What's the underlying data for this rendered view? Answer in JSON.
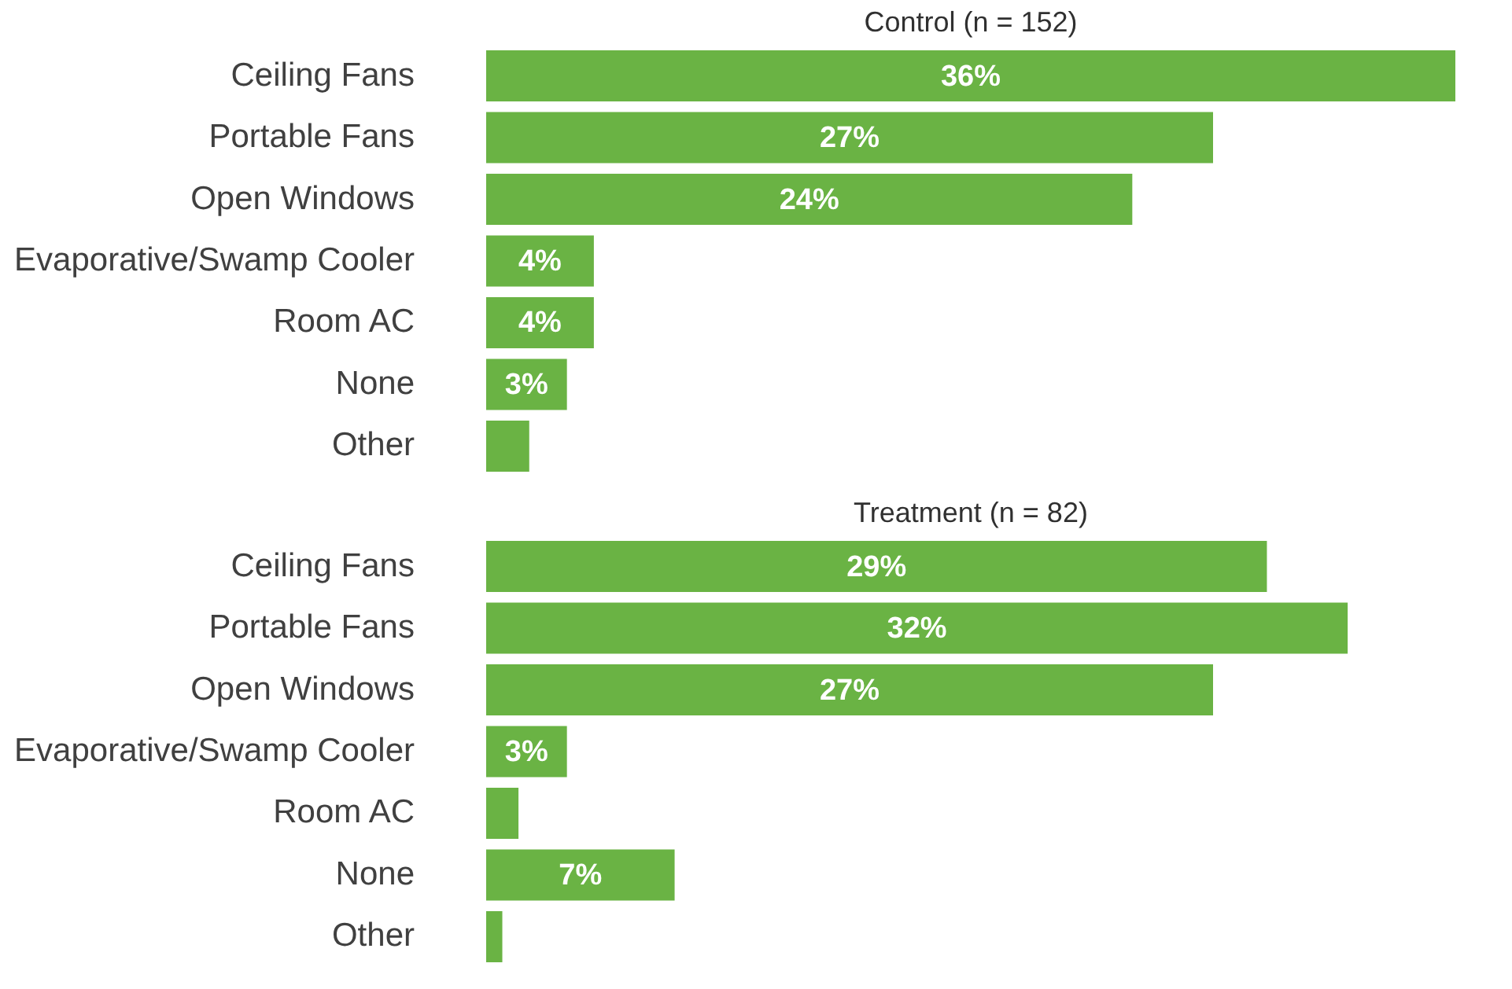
{
  "chart_data": [
    {
      "type": "bar",
      "orientation": "horizontal",
      "title": "Control (n = 152)",
      "categories": [
        "Ceiling Fans",
        "Portable Fans",
        "Open Windows",
        "Evaporative/Swamp Cooler",
        "Room AC",
        "None",
        "Other"
      ],
      "values": [
        36,
        27,
        24,
        4,
        4,
        3,
        1.6
      ],
      "value_labels": [
        "36%",
        "27%",
        "24%",
        "4%",
        "4%",
        "3%",
        null
      ],
      "color": "#6ab344",
      "xlim": [
        0,
        36
      ],
      "tick_labels": "y",
      "grid": false
    },
    {
      "type": "bar",
      "orientation": "horizontal",
      "title": "Treatment (n = 82)",
      "categories": [
        "Ceiling Fans",
        "Portable Fans",
        "Open Windows",
        "Evaporative/Swamp Cooler",
        "Room AC",
        "None",
        "Other"
      ],
      "values": [
        29,
        32,
        27,
        3,
        1.2,
        7,
        0.6
      ],
      "value_labels": [
        "29%",
        "32%",
        "27%",
        "3%",
        null,
        "7%",
        null
      ],
      "color": "#6ab344",
      "xlim": [
        0,
        36
      ],
      "tick_labels": "y",
      "grid": false
    }
  ]
}
